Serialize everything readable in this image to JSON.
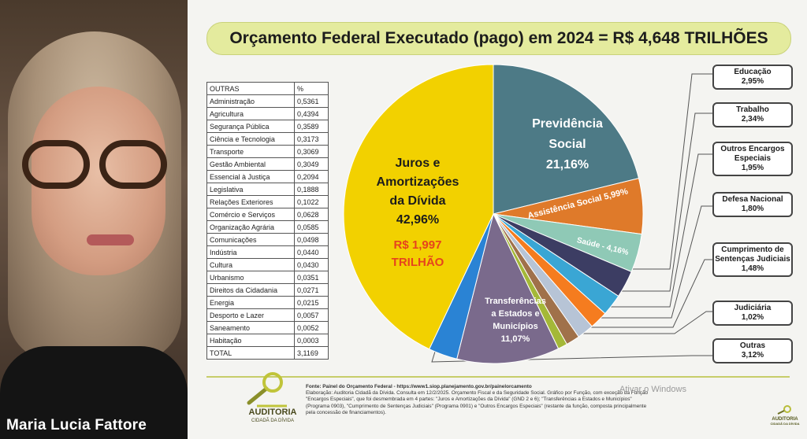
{
  "presenter": {
    "name": "Maria Lucia Fattore"
  },
  "slide": {
    "title": "Orçamento Federal Executado (pago) em 2024 = R$ 4,648 TRILHÕES",
    "table": {
      "headers": [
        "OUTRAS",
        "%"
      ],
      "rows": [
        [
          "Administração",
          "0,5361"
        ],
        [
          "Agricultura",
          "0,4394"
        ],
        [
          "Segurança Pública",
          "0,3589"
        ],
        [
          "Ciência e Tecnologia",
          "0,3173"
        ],
        [
          "Transporte",
          "0,3069"
        ],
        [
          "Gestão Ambiental",
          "0,3049"
        ],
        [
          "Essencial à Justiça",
          "0,2094"
        ],
        [
          "Legislativa",
          "0,1888"
        ],
        [
          "Relações Exteriores",
          "0,1022"
        ],
        [
          "Comércio e Serviços",
          "0,0628"
        ],
        [
          "Organização Agrária",
          "0,0585"
        ],
        [
          "Comunicações",
          "0,0498"
        ],
        [
          "Indústria",
          "0,0440"
        ],
        [
          "Cultura",
          "0,0430"
        ],
        [
          "Urbanismo",
          "0,0351"
        ],
        [
          "Direitos da Cidadania",
          "0,0271"
        ],
        [
          "Energia",
          "0,0215"
        ],
        [
          "Desporto e Lazer",
          "0,0057"
        ],
        [
          "Saneamento",
          "0,0052"
        ],
        [
          "Habitação",
          "0,0003"
        ]
      ],
      "total": [
        "TOTAL",
        "3,1169"
      ]
    },
    "callouts": [
      {
        "label": "Educação",
        "value": "2,95%"
      },
      {
        "label": "Trabalho",
        "value": "2,34%"
      },
      {
        "label": "Outros Encargos Especiais",
        "value": "1,95%"
      },
      {
        "label": "Defesa Nacional",
        "value": "1,80%"
      },
      {
        "label": "Cumprimento de Sentenças Judiciais",
        "value": "1,48%"
      },
      {
        "label": "Judiciária",
        "value": "1,02%"
      },
      {
        "label": "Outras",
        "value": "3,12%"
      }
    ],
    "logo": {
      "name": "AUDITORIA",
      "sub": "CIDADÃ DA DÍVIDA"
    },
    "source_lines": [
      "Fonte: Painel do Orçamento Federal - https://www1.siop.planejamento.gov.br/painelorcamento",
      "Elaboração: Auditoria Cidadã da Dívida. Consulta em 12/2/2025. Orçamento Fiscal e da Seguridade Social. Gráfico por Função, com exceção da Função",
      "\"Encargos Especiais\", que foi desmembrada em 4 partes: \"Juros e Amortizações da Dívida\" (GND 2 e 6); \"Transferências a Estados e Municípios\"",
      "(Programa 0903), \"Cumprimento de Sentenças Judiciais\" (Programa 0901) e \"Outros Encargos Especiais\" (restante da função, composta principalmente",
      "pela concessão de financiamentos)."
    ],
    "os_watermark": "Ativar o Windows",
    "corner_logo": {
      "name": "AUDITORIA",
      "sub": "CIDADÃ DA DÍVIDA"
    }
  },
  "colors": {
    "juros": "#f2d100",
    "previdencia": "#4d7a86",
    "assistencia": "#df7a2a",
    "saude": "#8fc9b6",
    "educacao": "#3c3d63",
    "trabalho": "#3aa6d4",
    "outros_encargos": "#f57c1f",
    "defesa": "#b7c4d6",
    "sentencas": "#a0714a",
    "judiciaria": "#a4b838",
    "transferencias": "#7a6a8c",
    "outras": "#2a83d4"
  },
  "chart_data": {
    "type": "pie",
    "title": "Orçamento Federal Executado (pago) em 2024 = R$ 4,648 TRILHÕES",
    "slices": [
      {
        "label": "Previdência Social",
        "value": 21.16,
        "color": "#4d7a86"
      },
      {
        "label": "Assistência Social",
        "value": 5.99,
        "color": "#df7a2a"
      },
      {
        "label": "Saúde",
        "value": 4.16,
        "color": "#8fc9b6"
      },
      {
        "label": "Educação",
        "value": 2.95,
        "color": "#3c3d63"
      },
      {
        "label": "Trabalho",
        "value": 2.34,
        "color": "#3aa6d4"
      },
      {
        "label": "Outros Encargos Especiais",
        "value": 1.95,
        "color": "#f57c1f"
      },
      {
        "label": "Defesa Nacional",
        "value": 1.8,
        "color": "#b7c4d6"
      },
      {
        "label": "Cumprimento de Sentenças Judiciais",
        "value": 1.48,
        "color": "#a0714a"
      },
      {
        "label": "Judiciária",
        "value": 1.02,
        "color": "#a4b838"
      },
      {
        "label": "Transferências a Estados e Municípios",
        "value": 11.07,
        "color": "#7a6a8c"
      },
      {
        "label": "Outras",
        "value": 3.12,
        "color": "#2a83d4"
      },
      {
        "label": "Juros e Amortizações da Dívida",
        "value": 42.96,
        "color": "#f2d100"
      }
    ],
    "inner_labels": {
      "previdencia": [
        "Previdência",
        "Social",
        "21,16%"
      ],
      "assistencia": "Assistência Social 5,99%",
      "saude": "Saúde - 4,16%",
      "transferencias": [
        "Transferências",
        "a Estados e",
        "Municípios",
        "11,07%"
      ],
      "juros": [
        "Juros e",
        "Amortizações",
        "da Dívida",
        "42,96%"
      ],
      "juros_amount": [
        "R$ 1,997",
        "TRILHÃO"
      ]
    }
  }
}
